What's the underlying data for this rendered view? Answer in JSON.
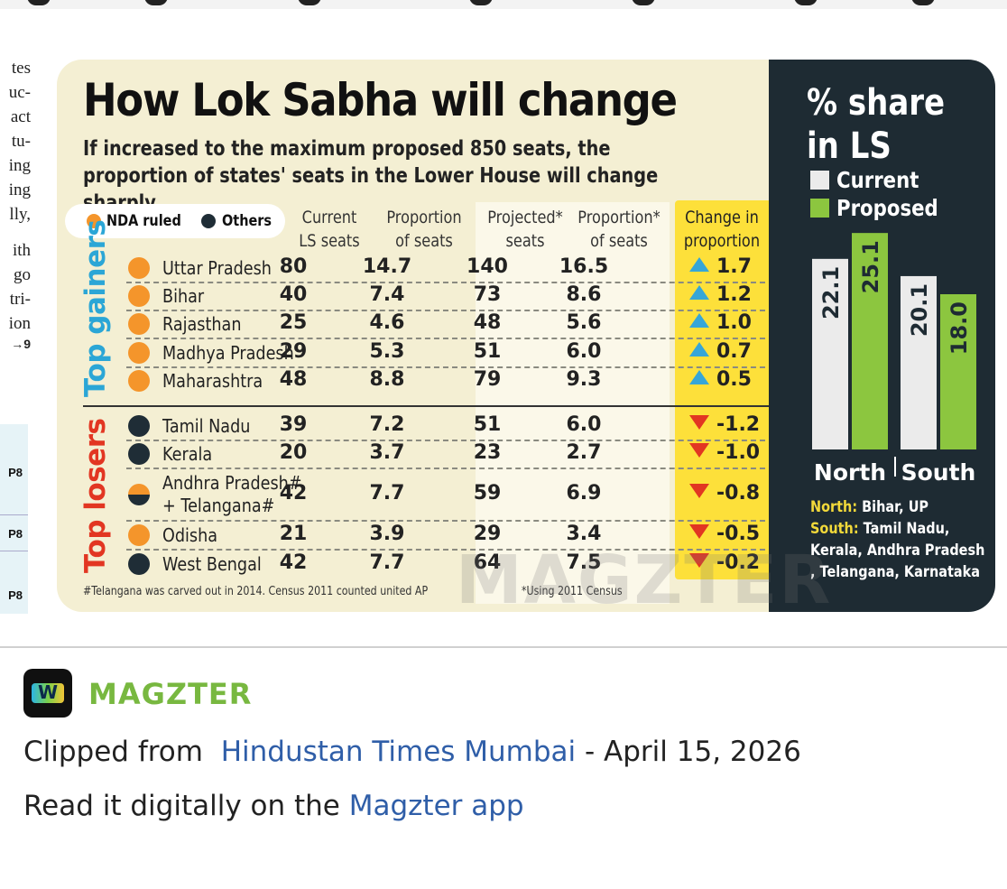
{
  "article_fragment": {
    "lines": [
      "tes",
      "uc-",
      "act",
      "tu-",
      "ing",
      "ing",
      "lly,",
      "",
      "ith",
      "go",
      "tri-",
      "ion",
      "→9"
    ],
    "sidebar_refs": [
      "P8",
      "P8",
      "P8"
    ]
  },
  "infographic": {
    "title": "How Lok Sabha will change",
    "subtitle": "If increased to the maximum proposed 850 seats, the proportion of states' seats in the Lower House will change sharply",
    "legend": {
      "nda": "NDA ruled",
      "others": "Others"
    },
    "columns": {
      "current": "Current\nLS seats",
      "proportion": "Proportion\nof seats",
      "projected": "Projected*\nseats",
      "proj_proportion": "Proportion*\nof seats",
      "change": "Change in\nproportion"
    },
    "groups": {
      "gainers": "Top gainers",
      "losers": "Top losers"
    },
    "gainers": [
      {
        "state": "Uttar Pradesh",
        "party": "nda",
        "current": "80",
        "proportion": "14.7",
        "projected": "140",
        "proj_proportion": "16.5",
        "change": "1.7"
      },
      {
        "state": "Bihar",
        "party": "nda",
        "current": "40",
        "proportion": "7.4",
        "projected": "73",
        "proj_proportion": "8.6",
        "change": "1.2"
      },
      {
        "state": "Rajasthan",
        "party": "nda",
        "current": "25",
        "proportion": "4.6",
        "projected": "48",
        "proj_proportion": "5.6",
        "change": "1.0"
      },
      {
        "state": "Madhya Pradesh",
        "party": "nda",
        "current": "29",
        "proportion": "5.3",
        "projected": "51",
        "proj_proportion": "6.0",
        "change": "0.7"
      },
      {
        "state": "Maharashtra",
        "party": "nda",
        "current": "48",
        "proportion": "8.8",
        "projected": "79",
        "proj_proportion": "9.3",
        "change": "0.5"
      }
    ],
    "losers": [
      {
        "state": "Tamil Nadu",
        "party": "others",
        "current": "39",
        "proportion": "7.2",
        "projected": "51",
        "proj_proportion": "6.0",
        "change": "-1.2"
      },
      {
        "state": "Kerala",
        "party": "others",
        "current": "20",
        "proportion": "3.7",
        "projected": "23",
        "proj_proportion": "2.7",
        "change": "-1.0"
      },
      {
        "state": "Andhra Pradesh#",
        "state2": "+ Telangana#",
        "party": "mixed",
        "current": "42",
        "proportion": "7.7",
        "projected": "59",
        "proj_proportion": "6.9",
        "change": "-0.8"
      },
      {
        "state": "Odisha",
        "party": "nda",
        "current": "21",
        "proportion": "3.9",
        "projected": "29",
        "proj_proportion": "3.4",
        "change": "-0.5"
      },
      {
        "state": "West Bengal",
        "party": "others",
        "current": "42",
        "proportion": "7.7",
        "projected": "64",
        "proj_proportion": "7.5",
        "change": "-0.2"
      }
    ],
    "footnotes": {
      "left": "#Telangana was carved out in 2014. Census 2011 counted united AP",
      "right": "*Using 2011 Census"
    },
    "watermark": "MAGZTER"
  },
  "chart_data": {
    "type": "bar",
    "title": "% share in LS",
    "categories": [
      "North",
      "South"
    ],
    "series": [
      {
        "name": "Current",
        "values": [
          22.1,
          20.1
        ]
      },
      {
        "name": "Proposed",
        "values": [
          25.1,
          18.0
        ]
      }
    ],
    "ylim": [
      0,
      30
    ],
    "legend": "top-left",
    "notes": {
      "north_key": "North:",
      "north_val": "Bihar, UP",
      "south_key": "South:",
      "south_val": "Tamil Nadu, Kerala, Andhra Pradesh , Telangana, Karnataka"
    }
  },
  "colors": {
    "nda": "#f4952b",
    "others": "#1f2d36",
    "gainers_label": "#2ba6d6",
    "losers_label": "#e23622",
    "current_bar": "#ebebeb",
    "proposed_bar": "#8cc63f",
    "brand": "#78b840",
    "link": "#2f5ea8"
  },
  "attribution": {
    "brand": "MAGZTER",
    "clipped_prefix": "Clipped from",
    "publication": "Hindustan Times Mumbai",
    "date": " - April 15, 2026",
    "read_prefix": "Read it digitally on the",
    "app_link": "Magzter app"
  }
}
